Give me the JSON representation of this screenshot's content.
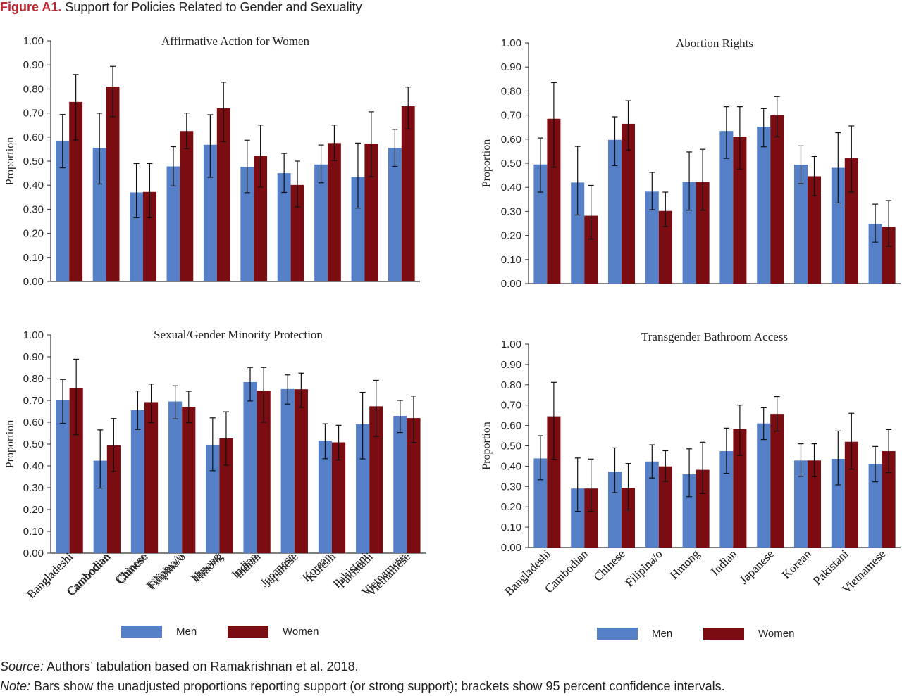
{
  "figure": {
    "label": "Figure A1.",
    "title": "Support for Policies Related to Gender and Sexuality"
  },
  "colors": {
    "men": "#5580c8",
    "women": "#7b0d12",
    "axis": "#333333",
    "label_red": "#c0262e"
  },
  "legend": {
    "men": "Men",
    "women": "Women"
  },
  "footer": {
    "source_label": "Source:",
    "source_text": "Authors’ tabulation based on Ramakrishnan et al. 2018.",
    "note_label": "Note:",
    "note_text": "Bars show the unadjusted proportions reporting support (or strong support); brackets show 95 percent confidence intervals."
  },
  "chart_data": [
    {
      "type": "bar",
      "title": "Affirmative Action for Women",
      "ylabel": "Proportion",
      "ylim": [
        0,
        1
      ],
      "yticks": [
        "0.00",
        "0.10",
        "0.20",
        "0.30",
        "0.40",
        "0.50",
        "0.60",
        "0.70",
        "0.80",
        "0.90",
        "1.00"
      ],
      "categories": [
        "Bangladeshi",
        "Cambodian",
        "Chinese",
        "Filipina/o",
        "Hmong",
        "Indian",
        "Japanese",
        "Korean",
        "Pakistani",
        "Vietnamese"
      ],
      "series": [
        {
          "name": "Men",
          "values": [
            0.585,
            0.555,
            0.37,
            0.478,
            0.568,
            0.476,
            0.45,
            0.486,
            0.434,
            0.555
          ],
          "ci_low": [
            0.472,
            0.405,
            0.265,
            0.397,
            0.433,
            0.369,
            0.37,
            0.41,
            0.305,
            0.478
          ],
          "ci_high": [
            0.694,
            0.699,
            0.49,
            0.56,
            0.693,
            0.587,
            0.532,
            0.567,
            0.575,
            0.632
          ]
        },
        {
          "name": "Women",
          "values": [
            0.746,
            0.81,
            0.372,
            0.625,
            0.72,
            0.522,
            0.401,
            0.575,
            0.573,
            0.728
          ],
          "ci_low": [
            0.588,
            0.685,
            0.265,
            0.552,
            0.581,
            0.392,
            0.31,
            0.502,
            0.435,
            0.633
          ],
          "ci_high": [
            0.86,
            0.894,
            0.49,
            0.7,
            0.828,
            0.65,
            0.5,
            0.65,
            0.705,
            0.808
          ]
        }
      ]
    },
    {
      "type": "bar",
      "title": "Abortion Rights",
      "ylabel": "Proportion",
      "ylim": [
        0,
        1
      ],
      "yticks": [
        "0.00",
        "0.10",
        "0.20",
        "0.30",
        "0.40",
        "0.50",
        "0.60",
        "0.70",
        "0.80",
        "0.90",
        "1.00"
      ],
      "categories": [
        "Bangladeshi",
        "Cambodian",
        "Chinese",
        "Filipina/o",
        "Hmong",
        "Indian",
        "Japanese",
        "Korean",
        "Pakistani",
        "Vietnamese"
      ],
      "series": [
        {
          "name": "Men",
          "values": [
            0.495,
            0.42,
            0.597,
            0.382,
            0.422,
            0.634,
            0.652,
            0.494,
            0.481,
            0.248
          ],
          "ci_low": [
            0.38,
            0.285,
            0.49,
            0.307,
            0.305,
            0.52,
            0.568,
            0.415,
            0.335,
            0.172
          ],
          "ci_high": [
            0.605,
            0.57,
            0.693,
            0.462,
            0.547,
            0.735,
            0.727,
            0.572,
            0.627,
            0.33
          ]
        },
        {
          "name": "Women",
          "values": [
            0.685,
            0.282,
            0.664,
            0.302,
            0.422,
            0.611,
            0.7,
            0.446,
            0.521,
            0.236
          ],
          "ci_low": [
            0.483,
            0.185,
            0.555,
            0.237,
            0.305,
            0.476,
            0.61,
            0.365,
            0.38,
            0.155
          ],
          "ci_high": [
            0.835,
            0.408,
            0.76,
            0.38,
            0.558,
            0.735,
            0.777,
            0.528,
            0.655,
            0.345
          ]
        }
      ]
    },
    {
      "type": "bar",
      "title": "Sexual/Gender Minority Protection",
      "ylabel": "Proportion",
      "ylim": [
        0,
        1
      ],
      "yticks": [
        "0.00",
        "0.10",
        "0.20",
        "0.30",
        "0.40",
        "0.50",
        "0.60",
        "0.70",
        "0.80",
        "0.90",
        "1.00"
      ],
      "categories": [
        "Bangladeshi",
        "Cambodian",
        "Chinese",
        "Filipina/o",
        "Hmong",
        "Indian",
        "Japanese",
        "Korean",
        "Pakistani",
        "Vietnamese"
      ],
      "series": [
        {
          "name": "Men",
          "values": [
            0.703,
            0.424,
            0.656,
            0.695,
            0.497,
            0.784,
            0.752,
            0.515,
            0.591,
            0.629
          ],
          "ci_low": [
            0.595,
            0.298,
            0.567,
            0.615,
            0.378,
            0.697,
            0.683,
            0.433,
            0.432,
            0.553
          ],
          "ci_high": [
            0.796,
            0.565,
            0.743,
            0.767,
            0.62,
            0.851,
            0.817,
            0.593,
            0.737,
            0.7
          ]
        },
        {
          "name": "Women",
          "values": [
            0.755,
            0.494,
            0.692,
            0.671,
            0.526,
            0.745,
            0.751,
            0.508,
            0.673,
            0.619
          ],
          "ci_low": [
            0.543,
            0.375,
            0.598,
            0.598,
            0.403,
            0.6,
            0.668,
            0.427,
            0.535,
            0.508
          ],
          "ci_high": [
            0.889,
            0.617,
            0.775,
            0.742,
            0.648,
            0.851,
            0.825,
            0.586,
            0.792,
            0.72
          ]
        }
      ]
    },
    {
      "type": "bar",
      "title": "Transgender Bathroom Access",
      "ylabel": "Proportion",
      "ylim": [
        0,
        1
      ],
      "yticks": [
        "0.00",
        "0.10",
        "0.20",
        "0.30",
        "0.40",
        "0.50",
        "0.60",
        "0.70",
        "0.80",
        "0.90",
        "1.00"
      ],
      "categories": [
        "Bangladeshi",
        "Cambodian",
        "Chinese",
        "Filipina/o",
        "Hmong",
        "Indian",
        "Japanese",
        "Korean",
        "Pakistani",
        "Vietnamese"
      ],
      "series": [
        {
          "name": "Men",
          "values": [
            0.438,
            0.29,
            0.373,
            0.423,
            0.36,
            0.474,
            0.61,
            0.428,
            0.436,
            0.411
          ],
          "ci_low": [
            0.333,
            0.178,
            0.27,
            0.342,
            0.25,
            0.365,
            0.531,
            0.35,
            0.308,
            0.323
          ],
          "ci_high": [
            0.55,
            0.44,
            0.49,
            0.505,
            0.485,
            0.587,
            0.687,
            0.51,
            0.573,
            0.497
          ]
        },
        {
          "name": "Women",
          "values": [
            0.645,
            0.29,
            0.293,
            0.399,
            0.382,
            0.583,
            0.657,
            0.428,
            0.52,
            0.474
          ],
          "ci_low": [
            0.434,
            0.178,
            0.185,
            0.325,
            0.265,
            0.453,
            0.572,
            0.348,
            0.385,
            0.368
          ],
          "ci_high": [
            0.812,
            0.435,
            0.413,
            0.476,
            0.518,
            0.7,
            0.742,
            0.51,
            0.66,
            0.58
          ]
        }
      ]
    }
  ]
}
